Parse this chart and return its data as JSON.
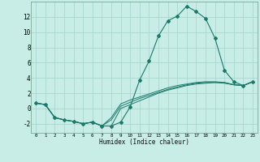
{
  "xlabel": "Humidex (Indice chaleur)",
  "background_color": "#c8ece6",
  "grid_color": "#a8d8d0",
  "line_color": "#1a7a6a",
  "xlim": [
    -0.5,
    23.5
  ],
  "ylim": [
    -3.2,
    14.0
  ],
  "x_ticks": [
    0,
    1,
    2,
    3,
    4,
    5,
    6,
    7,
    8,
    9,
    10,
    11,
    12,
    13,
    14,
    15,
    16,
    17,
    18,
    19,
    20,
    21,
    22,
    23
  ],
  "y_ticks": [
    -2,
    0,
    2,
    4,
    6,
    8,
    10,
    12
  ],
  "series": [
    [
      0.7,
      0.5,
      -1.2,
      -1.5,
      -1.7,
      -2.0,
      -1.8,
      -2.3,
      -2.3,
      -1.8,
      0.2,
      3.7,
      6.2,
      9.5,
      11.5,
      12.1,
      13.4,
      12.7,
      11.8,
      9.2,
      5.0,
      3.5,
      3.0,
      3.5
    ],
    [
      0.7,
      0.5,
      -1.2,
      -1.5,
      -1.7,
      -2.0,
      -1.8,
      -2.3,
      -2.3,
      0.0,
      0.5,
      1.0,
      1.5,
      2.0,
      2.4,
      2.7,
      3.0,
      3.2,
      3.3,
      3.4,
      3.3,
      3.1,
      3.0,
      3.5
    ],
    [
      0.7,
      0.5,
      -1.2,
      -1.5,
      -1.7,
      -2.0,
      -1.8,
      -2.3,
      -1.5,
      0.3,
      0.8,
      1.3,
      1.7,
      2.1,
      2.5,
      2.8,
      3.1,
      3.3,
      3.4,
      3.4,
      3.4,
      3.1,
      3.0,
      3.5
    ],
    [
      0.7,
      0.5,
      -1.2,
      -1.5,
      -1.7,
      -2.0,
      -1.8,
      -2.3,
      -1.2,
      0.6,
      1.1,
      1.5,
      1.9,
      2.3,
      2.7,
      3.0,
      3.2,
      3.4,
      3.5,
      3.5,
      3.4,
      3.1,
      3.0,
      3.5
    ]
  ]
}
